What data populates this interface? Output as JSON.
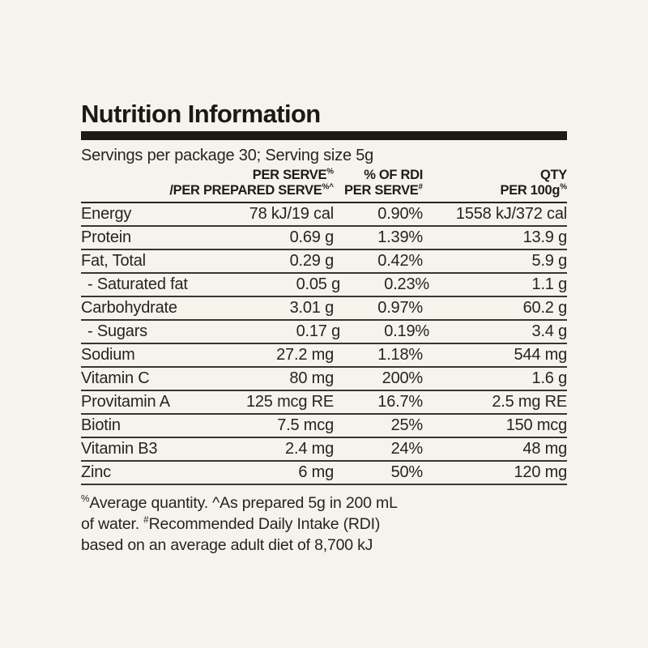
{
  "panel": {
    "title": "Nutrition Information",
    "serving_info": "Servings per package 30; Serving size 5g"
  },
  "table": {
    "header": {
      "col2": [
        [
          "PER SERVE",
          "%"
        ],
        [
          "/PER PREPARED SERVE",
          "%^"
        ]
      ],
      "col3": [
        [
          "% OF RDI",
          ""
        ],
        [
          "PER SERVE",
          "#"
        ]
      ],
      "col4": [
        [
          "QTY",
          ""
        ],
        [
          "PER 100g",
          "%"
        ]
      ]
    },
    "rows": [
      {
        "name": "Energy",
        "per_serve": "78 kJ/19 cal",
        "rdi": "0.90%",
        "per_100g": "1558 kJ/372 cal"
      },
      {
        "name": "Protein",
        "per_serve": "0.69 g",
        "rdi": "1.39%",
        "per_100g": "13.9 g"
      },
      {
        "name": "Fat, Total",
        "per_serve": "0.29 g",
        "rdi": "0.42%",
        "per_100g": "5.9 g"
      },
      {
        "name": "- Saturated fat",
        "indent": true,
        "per_serve": "0.05 g",
        "rdi": "0.23%",
        "per_100g": "1.1 g"
      },
      {
        "name": "Carbohydrate",
        "per_serve": "3.01 g",
        "rdi": "0.97%",
        "per_100g": "60.2 g"
      },
      {
        "name": "- Sugars",
        "indent": true,
        "per_serve": "0.17 g",
        "rdi": "0.19%",
        "per_100g": "3.4 g"
      },
      {
        "name": "Sodium",
        "per_serve": "27.2 mg",
        "rdi": "1.18%",
        "per_100g": "544 mg"
      },
      {
        "name": "Vitamin C",
        "per_serve": "80 mg",
        "rdi": "200%",
        "per_100g": "1.6 g"
      },
      {
        "name": "Provitamin A",
        "per_serve": "125 mcg RE",
        "rdi": "16.7%",
        "per_100g": "2.5 mg RE"
      },
      {
        "name": "Biotin",
        "per_serve": "7.5 mcg",
        "rdi": "25%",
        "per_100g": "150 mcg"
      },
      {
        "name": "Vitamin B3",
        "per_serve": "2.4 mg",
        "rdi": "24%",
        "per_100g": "48 mg"
      },
      {
        "name": "Zinc",
        "per_serve": "6 mg",
        "rdi": "50%",
        "per_100g": "120 mg"
      }
    ]
  },
  "footnotes": [
    [
      {
        "sup": "%"
      },
      {
        "text": "Average quantity. ^As prepared 5g in 200 mL"
      }
    ],
    [
      {
        "text": "of water. "
      },
      {
        "sup": "#"
      },
      {
        "text": "Recommended Daily Intake (RDI)"
      }
    ],
    [
      {
        "text": "based on an average adult diet of 8,700 kJ"
      }
    ]
  ],
  "colors": {
    "background": "#f6f3ec",
    "ink": "#1d1b17",
    "rule": "#393530"
  }
}
